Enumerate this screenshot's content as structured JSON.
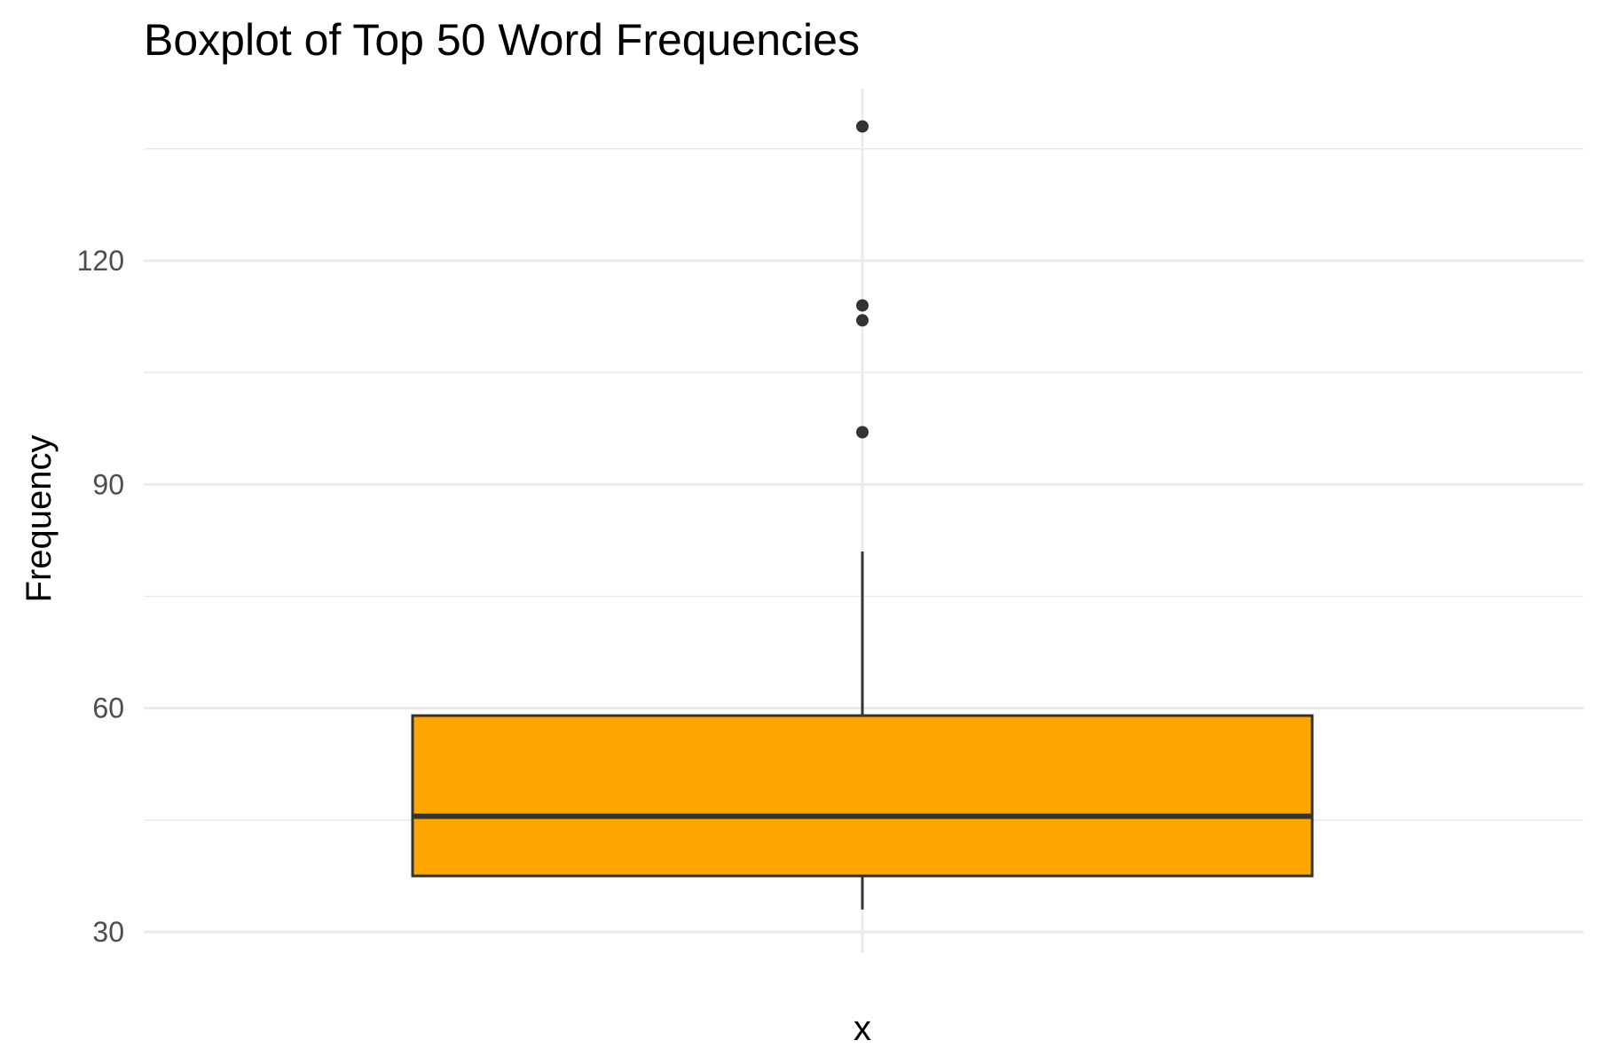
{
  "chart_data": {
    "type": "boxplot",
    "title": "Boxplot of Top 50 Word Frequencies",
    "xlabel": "x",
    "ylabel": "Frequency",
    "ylim": [
      27.5,
      146
    ],
    "y_ticks": [
      30,
      60,
      90,
      120
    ],
    "y_tick_labels": [
      "30",
      "60",
      "90",
      "120"
    ],
    "grid": true,
    "box": {
      "whisker_low": 33,
      "q1": 37.5,
      "median": 45.5,
      "q3": 59,
      "whisker_high": 81,
      "outliers": [
        97,
        112,
        114,
        138
      ]
    },
    "colors": {
      "fill": "#FFA500",
      "stroke": "#333333",
      "outlier": "#333333",
      "grid_major": "#ebebeb",
      "grid_minor": "#ebebeb"
    }
  }
}
